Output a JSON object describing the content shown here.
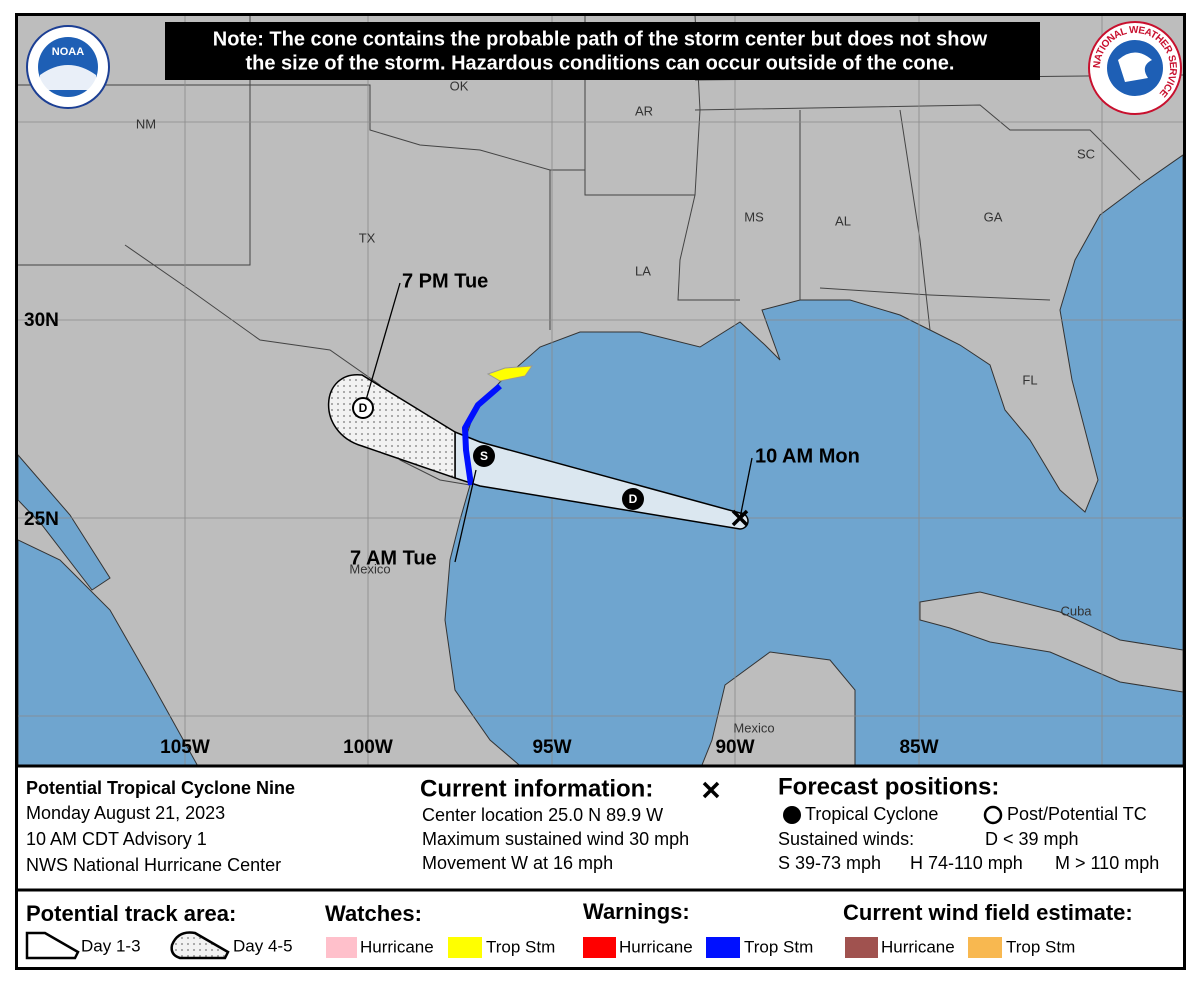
{
  "note": [
    "Note: The cone contains the probable path of the storm center but does not show",
    "the size of the storm. Hazardous conditions can occur outside of the cone."
  ],
  "logos": {
    "noaa": "NOAA",
    "nws": "NATIONAL WEATHER SERVICE"
  },
  "map_labels": [
    "NM",
    "OK",
    "AR",
    "TX",
    "MS",
    "AL",
    "GA",
    "SC",
    "LA",
    "FL",
    "Mexico",
    "Cuba",
    "Mexico"
  ],
  "latitudes": [
    "30N",
    "25N"
  ],
  "longitudes": [
    "105W",
    "100W",
    "95W",
    "90W",
    "85W"
  ],
  "forecast_times": [
    "7 PM Tue",
    "10 AM Mon",
    "7 AM Tue"
  ],
  "track_points": [
    "D",
    "S",
    "D"
  ],
  "storm_info": {
    "name": "Potential Tropical Cyclone Nine",
    "date": "Monday August 21, 2023",
    "advisory": "10 AM CDT Advisory 1",
    "center": "NWS National Hurricane Center"
  },
  "current_information": {
    "heading": "Current information:",
    "lines": [
      "Center location 25.0 N 89.9 W",
      "Maximum sustained wind 30 mph",
      "Movement W at 16 mph"
    ]
  },
  "forecast_positions": {
    "heading": "Forecast positions:",
    "tropical_cyclone": "Tropical Cyclone",
    "post_potential": "Post/Potential TC",
    "sustained_winds": "Sustained winds:",
    "d": "D < 39 mph",
    "s": "S 39-73 mph",
    "h": "H 74-110 mph",
    "m": "M > 110 mph"
  },
  "legend": {
    "track_area": {
      "heading": "Potential track area:",
      "day_1_3": "Day 1-3",
      "day_4_5": "Day 4-5"
    },
    "watches": {
      "heading": "Watches:",
      "hurricane": "Hurricane",
      "trop_stm": "Trop Stm"
    },
    "warnings": {
      "heading": "Warnings:",
      "hurricane": "Hurricane",
      "trop_stm": "Trop Stm"
    },
    "wind_field": {
      "heading": "Current wind field estimate:",
      "hurricane": "Hurricane",
      "trop_stm": "Trop Stm"
    }
  }
}
